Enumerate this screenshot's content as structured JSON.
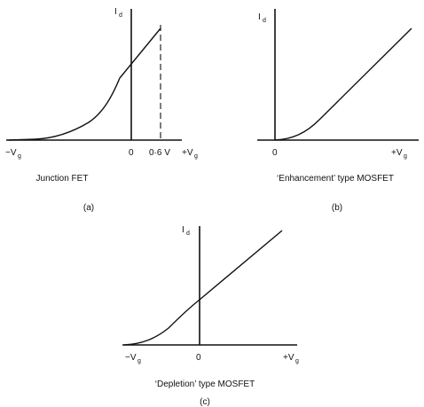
{
  "panels": {
    "a": {
      "y_axis_label": "I",
      "y_axis_sub": "d",
      "x_neg_label": "−V",
      "x_neg_sub": "g",
      "origin_label": "0",
      "threshold_label": "0·6 V",
      "x_pos_label": "+V",
      "x_pos_sub": "g",
      "caption": "Junction FET",
      "letter": "(a)"
    },
    "b": {
      "y_axis_label": "I",
      "y_axis_sub": "d",
      "origin_label": "0",
      "x_pos_label": "+V",
      "x_pos_sub": "g",
      "caption": "‘Enhancement’ type MOSFET",
      "letter": "(b)"
    },
    "c": {
      "y_axis_label": "I",
      "y_axis_sub": "d",
      "x_neg_label": "−V",
      "x_neg_sub": "g",
      "origin_label": "0",
      "x_pos_label": "+V",
      "x_pos_sub": "g",
      "caption": "‘Depletion’ type MOSFET",
      "letter": "(c)"
    }
  }
}
